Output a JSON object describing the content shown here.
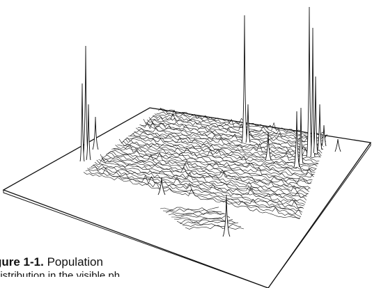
{
  "figure": {
    "label": "gure 1-1.",
    "caption_line1": "Population",
    "caption_line2": "distribution in the visible ph"
  },
  "colors": {
    "ink": "#111111",
    "paper": "#ffffff"
  }
}
